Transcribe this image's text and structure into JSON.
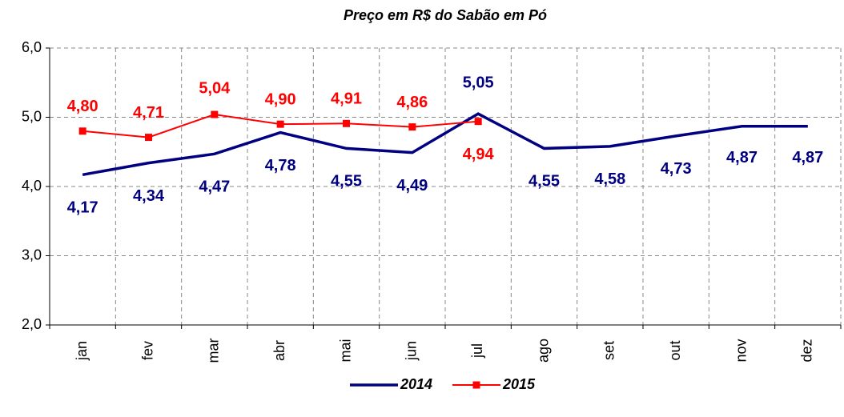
{
  "chart_data": {
    "type": "line",
    "title": "Preço em R$ do Sabão em Pó",
    "categories": [
      "jan",
      "fev",
      "mar",
      "abr",
      "mai",
      "jun",
      "jul",
      "ago",
      "set",
      "out",
      "nov",
      "dez"
    ],
    "series": [
      {
        "name": "2014",
        "color": "#000080",
        "values": [
          4.17,
          4.34,
          4.47,
          4.78,
          4.55,
          4.49,
          5.05,
          4.55,
          4.58,
          4.73,
          4.87,
          4.87
        ],
        "value_labels": [
          "4,17",
          "4,34",
          "4,47",
          "4,78",
          "4,55",
          "4,49",
          "5,05",
          "4,55",
          "4,58",
          "4,73",
          "4,87",
          "4,87"
        ]
      },
      {
        "name": "2015",
        "color": "#ff0000",
        "values": [
          4.8,
          4.71,
          5.04,
          4.9,
          4.91,
          4.86,
          4.94,
          null,
          null,
          null,
          null,
          null
        ],
        "value_labels": [
          "4,80",
          "4,71",
          "5,04",
          "4,90",
          "4,91",
          "4,86",
          "4,94",
          null,
          null,
          null,
          null,
          null
        ]
      }
    ],
    "ylim": [
      2,
      6
    ],
    "yticks": [
      {
        "value": 2,
        "label": "2,0"
      },
      {
        "value": 3,
        "label": "3,0"
      },
      {
        "value": 4,
        "label": "4,0"
      },
      {
        "value": 5,
        "label": "5,0"
      },
      {
        "value": 6,
        "label": "6,0"
      }
    ],
    "grid": true,
    "legend": "bottom"
  }
}
